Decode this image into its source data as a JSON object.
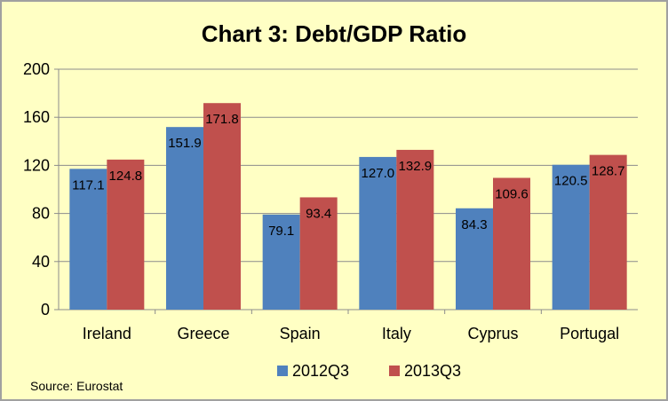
{
  "chart_data": {
    "type": "bar",
    "title": "Chart 3: Debt/GDP Ratio",
    "categories": [
      "Ireland",
      "Greece",
      "Spain",
      "Italy",
      "Cyprus",
      "Portugal"
    ],
    "series": [
      {
        "name": "2012Q3",
        "color": "#4f81bd",
        "values": [
          117.1,
          151.9,
          79.1,
          127.0,
          84.3,
          120.5
        ],
        "labels": [
          "117.1",
          "151.9",
          "79.1",
          "127.0",
          "84.3",
          "120.5"
        ]
      },
      {
        "name": "2013Q3",
        "color": "#c0504d",
        "values": [
          124.8,
          171.8,
          93.4,
          132.9,
          109.6,
          128.7
        ],
        "labels": [
          "124.8",
          "171.8",
          "93.4",
          "132.9",
          "109.6",
          "128.7"
        ]
      }
    ],
    "ylim": [
      0,
      200
    ],
    "yticks": [
      0,
      40,
      80,
      120,
      160,
      200
    ],
    "grid": true,
    "legend_position": "bottom",
    "source": "Source: Eurostat"
  }
}
